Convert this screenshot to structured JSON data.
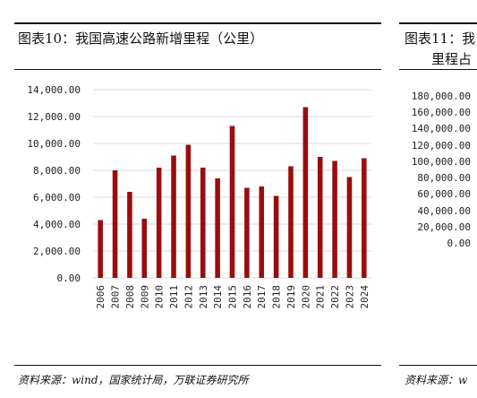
{
  "figure_left": {
    "title": "图表10：我国高速公路新增里程（公里）",
    "source": "资料来源：wind，国家统计局，万联证券研究所"
  },
  "figure_right": {
    "title_line1": "图表11：我",
    "title_line2": "里程占",
    "source": "资料来源：w",
    "y_ticks": [
      "180,000.00",
      "160,000.00",
      "140,000.00",
      "120,000.00",
      "100,000.00",
      "80,000.00",
      "60,000.00",
      "40,000.00",
      "20,000.00",
      "0.00"
    ]
  },
  "chart_data": {
    "type": "bar",
    "categories": [
      "2006",
      "2007",
      "2008",
      "2009",
      "2010",
      "2011",
      "2012",
      "2013",
      "2014",
      "2015",
      "2016",
      "2017",
      "2018",
      "2019",
      "2020",
      "2021",
      "2022",
      "2023",
      "2024"
    ],
    "values": [
      4300,
      8000,
      6400,
      4400,
      8200,
      9100,
      9900,
      8200,
      7400,
      11300,
      6700,
      6800,
      6100,
      8300,
      12700,
      9000,
      8700,
      7500,
      8900
    ],
    "ylim": [
      0,
      14000
    ],
    "y_ticks": [
      "0.00",
      "2,000.00",
      "4,000.00",
      "6,000.00",
      "8,000.00",
      "10,000.00",
      "12,000.00",
      "14,000.00"
    ],
    "grid": true,
    "bar_color": "#9b0d0d"
  }
}
